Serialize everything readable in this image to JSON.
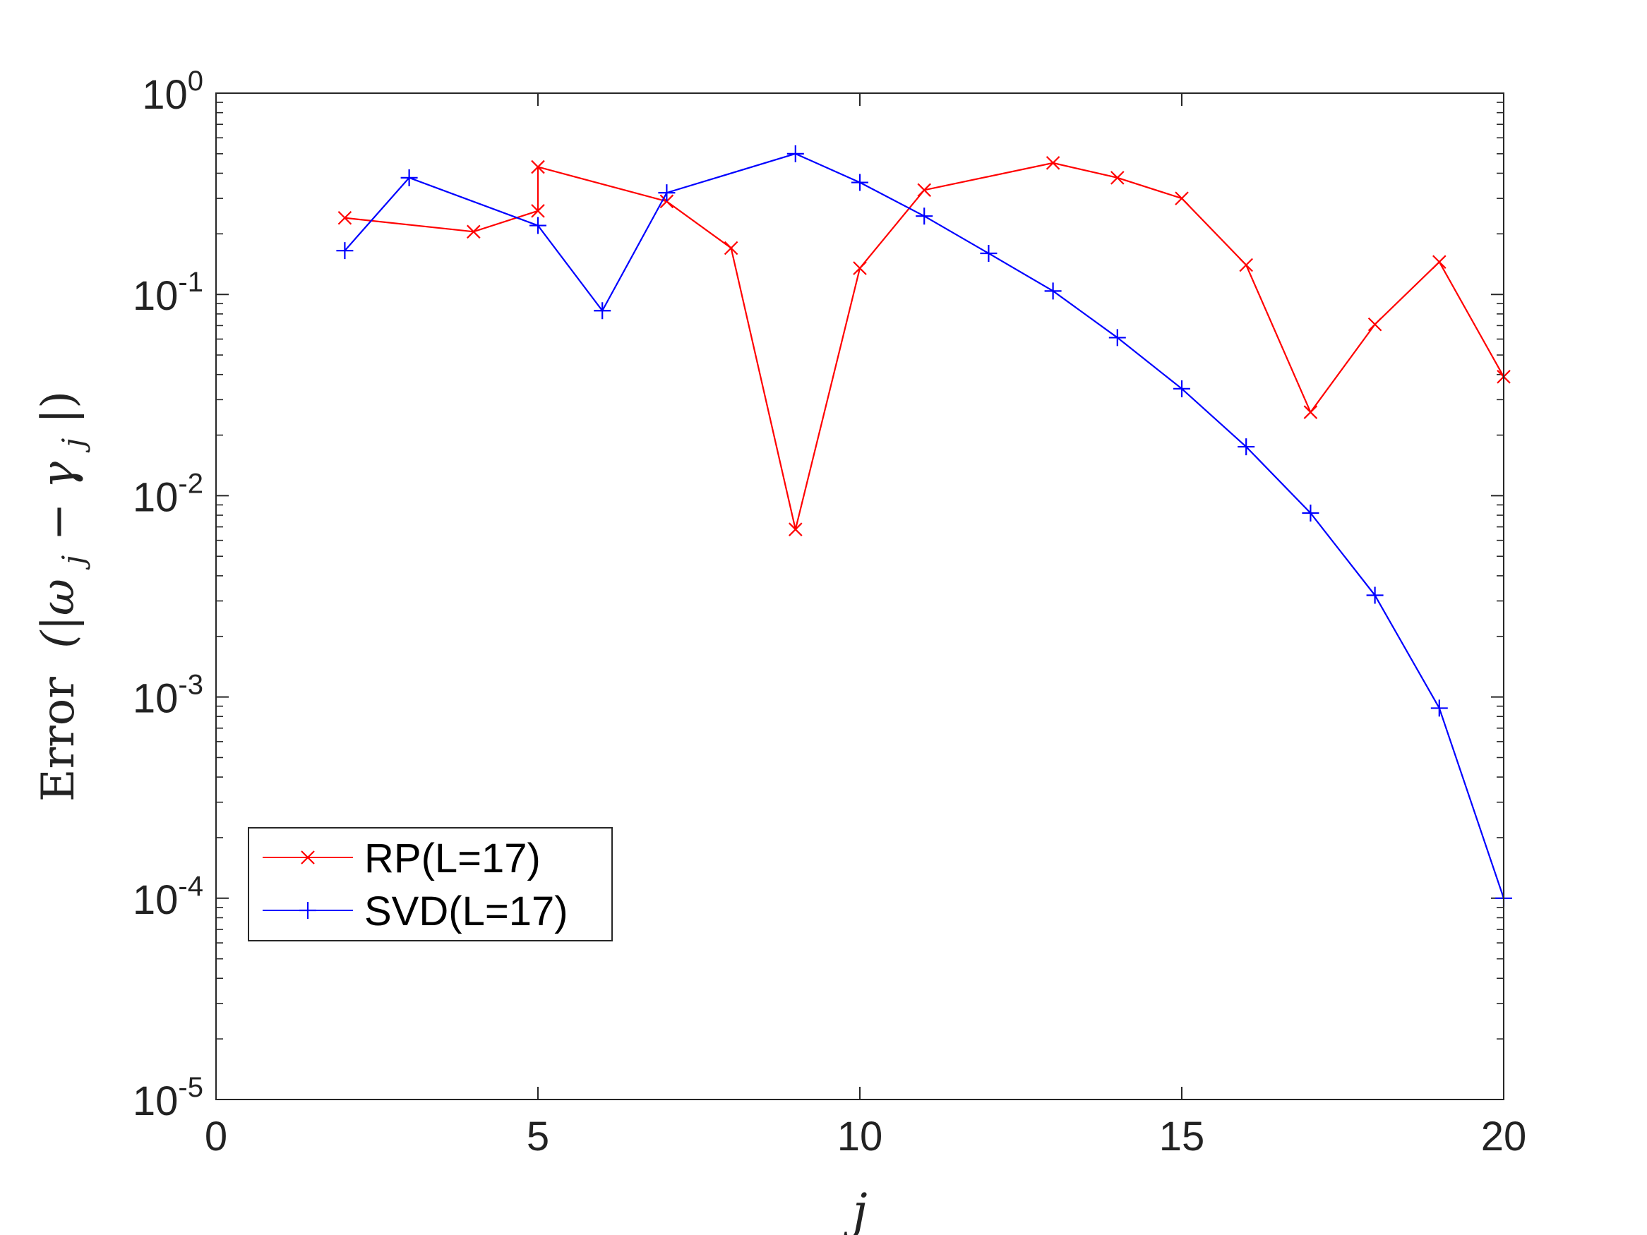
{
  "chart_data": {
    "type": "line",
    "xlabel": "j",
    "ylabel_text": "Error",
    "ylabel_math": "(|ω",
    "ylabel_math_sub": "j",
    "ylabel_math_mid": " − γ",
    "ylabel_math_sub2": "j",
    "ylabel_math_end": "|)",
    "xlim": [
      0,
      20
    ],
    "ylim": [
      1e-05,
      1
    ],
    "yscale": "log",
    "grid": false,
    "legend_position": "lower-left",
    "x_ticks": [
      {
        "value": 0,
        "label": "0"
      },
      {
        "value": 5,
        "label": "5"
      },
      {
        "value": 10,
        "label": "10"
      },
      {
        "value": 15,
        "label": "15"
      },
      {
        "value": 20,
        "label": "20"
      }
    ],
    "y_ticks": [
      {
        "value": 1,
        "base": "10",
        "exp": "0"
      },
      {
        "value": 0.1,
        "base": "10",
        "exp": "-1"
      },
      {
        "value": 0.01,
        "base": "10",
        "exp": "-2"
      },
      {
        "value": 0.001,
        "base": "10",
        "exp": "-3"
      },
      {
        "value": 0.0001,
        "base": "10",
        "exp": "-4"
      },
      {
        "value": 1e-05,
        "base": "10",
        "exp": "-5"
      }
    ],
    "series": [
      {
        "name": "RP(L=17)",
        "color": "#ff0000",
        "marker": "x",
        "x": [
          2,
          4,
          5,
          5,
          7,
          8,
          9,
          10,
          11,
          13,
          14,
          15,
          16,
          17,
          18,
          19,
          20
        ],
        "y": [
          0.24,
          0.205,
          0.26,
          0.43,
          0.29,
          0.17,
          0.0068,
          0.135,
          0.33,
          0.45,
          0.38,
          0.3,
          0.14,
          0.026,
          0.071,
          0.145,
          0.039
        ]
      },
      {
        "name": "SVD(L=17)",
        "color": "#0000ff",
        "marker": "+",
        "x": [
          2,
          3,
          5,
          6,
          7,
          9,
          10,
          11,
          12,
          13,
          14,
          15,
          16,
          17,
          18,
          19,
          20
        ],
        "y": [
          0.165,
          0.38,
          0.22,
          0.083,
          0.32,
          0.5,
          0.36,
          0.245,
          0.16,
          0.104,
          0.061,
          0.034,
          0.0175,
          0.0082,
          0.0032,
          0.00088,
          0.0001
        ]
      }
    ]
  }
}
